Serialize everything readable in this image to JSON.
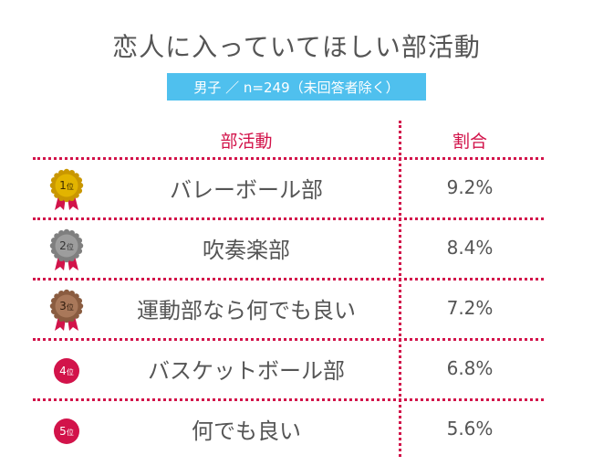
{
  "title": "恋人に入っていてほしい部活動",
  "subtitle": "男子 ／ n=249（未回答者除く）",
  "colors": {
    "accent": "#d2134a",
    "badge": "#4fc0ee",
    "gold": "#e2b400",
    "silver": "#9d9d9d",
    "bronze": "#a9785a",
    "rank": "#d2134a"
  },
  "chart_data": {
    "type": "table",
    "columns": [
      "部活動",
      "割合"
    ],
    "rows": [
      {
        "rank": 1,
        "rank_label": "1位",
        "medal": "gold-medal-icon",
        "club": "バレーボール部",
        "percent": 9.2,
        "percent_label": "9.2%"
      },
      {
        "rank": 2,
        "rank_label": "2位",
        "medal": "silver-medal-icon",
        "club": "吹奏楽部",
        "percent": 8.4,
        "percent_label": "8.4%"
      },
      {
        "rank": 3,
        "rank_label": "3位",
        "medal": "bronze-medal-icon",
        "club": "運動部なら何でも良い",
        "percent": 7.2,
        "percent_label": "7.2%"
      },
      {
        "rank": 4,
        "rank_label": "4位",
        "medal": "rank-circle-icon",
        "club": "バスケットボール部",
        "percent": 6.8,
        "percent_label": "6.8%"
      },
      {
        "rank": 5,
        "rank_label": "5位",
        "medal": "rank-circle-icon",
        "club": "何でも良い",
        "percent": 5.6,
        "percent_label": "5.6%"
      }
    ]
  }
}
